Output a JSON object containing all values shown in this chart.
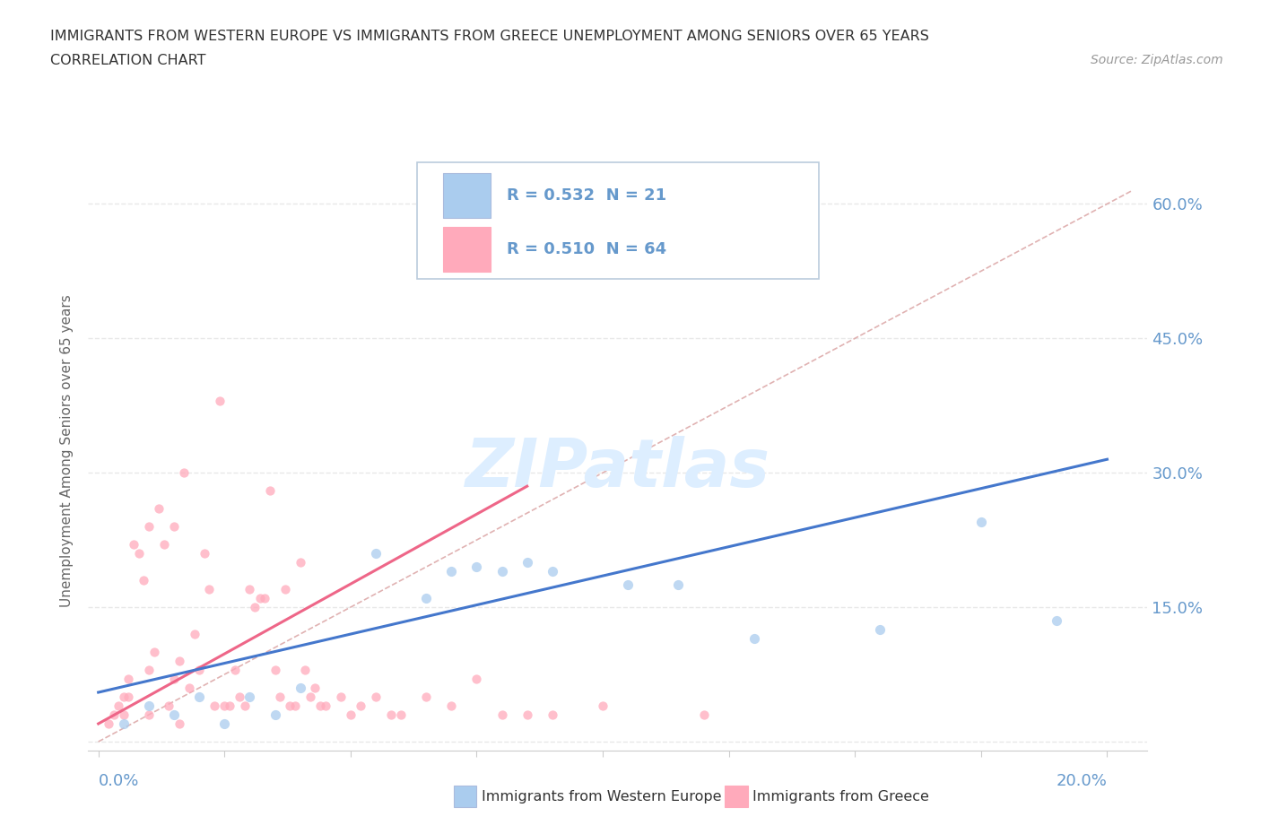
{
  "title_line1": "IMMIGRANTS FROM WESTERN EUROPE VS IMMIGRANTS FROM GREECE UNEMPLOYMENT AMONG SENIORS OVER 65 YEARS",
  "title_line2": "CORRELATION CHART",
  "source_text": "Source: ZipAtlas.com",
  "ylabel_label": "Unemployment Among Seniors over 65 years",
  "legend_blue_label": "Immigrants from Western Europe",
  "legend_pink_label": "Immigrants from Greece",
  "legend_blue_R": "R = 0.532",
  "legend_blue_N": "N = 21",
  "legend_pink_R": "R = 0.510",
  "legend_pink_N": "N = 64",
  "blue_color": "#AACCEE",
  "pink_color": "#FFAABB",
  "trend_blue_color": "#4477CC",
  "trend_pink_color": "#EE6688",
  "ref_line_color": "#DDAAAA",
  "watermark_color": "#DDEEFF",
  "blue_scatter_x": [
    0.005,
    0.01,
    0.015,
    0.02,
    0.025,
    0.03,
    0.035,
    0.04,
    0.055,
    0.065,
    0.07,
    0.075,
    0.08,
    0.085,
    0.09,
    0.105,
    0.115,
    0.13,
    0.155,
    0.175,
    0.19
  ],
  "blue_scatter_y": [
    0.02,
    0.04,
    0.03,
    0.05,
    0.02,
    0.05,
    0.03,
    0.06,
    0.21,
    0.16,
    0.19,
    0.195,
    0.19,
    0.2,
    0.19,
    0.175,
    0.175,
    0.115,
    0.125,
    0.245,
    0.135
  ],
  "pink_scatter_x": [
    0.002,
    0.003,
    0.004,
    0.005,
    0.005,
    0.006,
    0.006,
    0.007,
    0.008,
    0.009,
    0.01,
    0.01,
    0.01,
    0.011,
    0.012,
    0.013,
    0.014,
    0.015,
    0.015,
    0.016,
    0.016,
    0.017,
    0.018,
    0.019,
    0.02,
    0.021,
    0.022,
    0.023,
    0.024,
    0.025,
    0.026,
    0.027,
    0.028,
    0.029,
    0.03,
    0.031,
    0.032,
    0.033,
    0.034,
    0.035,
    0.036,
    0.037,
    0.038,
    0.039,
    0.04,
    0.041,
    0.042,
    0.043,
    0.044,
    0.045,
    0.048,
    0.05,
    0.052,
    0.055,
    0.058,
    0.06,
    0.065,
    0.07,
    0.075,
    0.08,
    0.085,
    0.09,
    0.1,
    0.12
  ],
  "pink_scatter_y": [
    0.02,
    0.03,
    0.04,
    0.05,
    0.03,
    0.07,
    0.05,
    0.22,
    0.21,
    0.18,
    0.08,
    0.24,
    0.03,
    0.1,
    0.26,
    0.22,
    0.04,
    0.07,
    0.24,
    0.09,
    0.02,
    0.3,
    0.06,
    0.12,
    0.08,
    0.21,
    0.17,
    0.04,
    0.38,
    0.04,
    0.04,
    0.08,
    0.05,
    0.04,
    0.17,
    0.15,
    0.16,
    0.16,
    0.28,
    0.08,
    0.05,
    0.17,
    0.04,
    0.04,
    0.2,
    0.08,
    0.05,
    0.06,
    0.04,
    0.04,
    0.05,
    0.03,
    0.04,
    0.05,
    0.03,
    0.03,
    0.05,
    0.04,
    0.07,
    0.03,
    0.03,
    0.03,
    0.04,
    0.03
  ],
  "blue_trend_x": [
    0.0,
    0.2
  ],
  "blue_trend_y": [
    0.055,
    0.315
  ],
  "pink_trend_x": [
    0.0,
    0.085
  ],
  "pink_trend_y": [
    0.02,
    0.285
  ],
  "ref_line_x": [
    0.0,
    0.205
  ],
  "ref_line_y": [
    0.0,
    0.615
  ],
  "xlim": [
    -0.002,
    0.208
  ],
  "ylim": [
    -0.01,
    0.66
  ],
  "ytick_positions": [
    0.0,
    0.15,
    0.3,
    0.45,
    0.6
  ],
  "ytick_labels_right": [
    "",
    "15.0%",
    "30.0%",
    "45.0%",
    "60.0%"
  ],
  "xtick_positions": [
    0.0,
    0.025,
    0.05,
    0.075,
    0.1,
    0.125,
    0.15,
    0.175,
    0.2
  ],
  "bg_color": "#FFFFFF",
  "axis_color": "#CCCCCC",
  "tick_label_color": "#6699CC",
  "grid_color": "#E8E8E8",
  "grid_style": "--"
}
